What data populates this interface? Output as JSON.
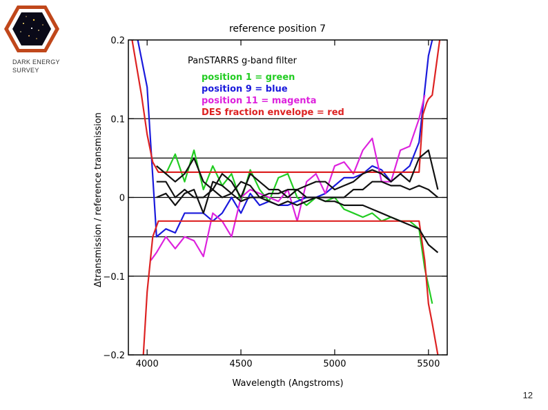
{
  "logo": {
    "line1": "DARK ENERGY",
    "line2": "SURVEY",
    "icon": "des-hexagon-icon"
  },
  "page_number": "12",
  "chart_data": {
    "type": "line",
    "title": "reference position 7",
    "xlabel": "Wavelength (Angstroms)",
    "ylabel": "Δtransmission / reference transmission",
    "xlim": [
      3900,
      5600
    ],
    "ylim": [
      -0.2,
      0.2
    ],
    "x_ticks": [
      4000,
      4500,
      5000,
      5500
    ],
    "y_ticks": [
      -0.2,
      -0.1,
      0,
      0.1,
      0.2
    ],
    "y_tick_labels": [
      "−0.2",
      "−0.1",
      "0",
      "0.1",
      "0.2"
    ],
    "hlines": [
      -0.1,
      -0.05,
      0,
      0.05,
      0.1
    ],
    "legend": {
      "placement": "top-center",
      "title": "PanSTARRS g-band filter",
      "entries": [
        {
          "label": "position 1 = green",
          "color": "#22cc22"
        },
        {
          "label": "position 9 = blue",
          "color": "#1a1adc"
        },
        {
          "label": "position 11 = magenta",
          "color": "#dd22dd"
        },
        {
          "label": "DES fraction envelope = red",
          "color": "#dd2222"
        }
      ]
    },
    "series": [
      {
        "name": "position 1",
        "color": "#22cc22",
        "x": [
          4050,
          4100,
          4150,
          4200,
          4250,
          4300,
          4350,
          4400,
          4450,
          4500,
          4550,
          4600,
          4650,
          4700,
          4750,
          4800,
          4850,
          4900,
          4950,
          5000,
          5050,
          5100,
          5150,
          5200,
          5250,
          5300,
          5350,
          5400,
          5450,
          5480,
          5520
        ],
        "y": [
          0.04,
          0.03,
          0.055,
          0.02,
          0.06,
          0.01,
          0.04,
          0.015,
          0.03,
          -0.005,
          0.035,
          0.01,
          -0.005,
          0.025,
          0.03,
          0.0,
          -0.01,
          0.0,
          -0.005,
          0.0,
          -0.015,
          -0.02,
          -0.025,
          -0.02,
          -0.03,
          -0.025,
          -0.03,
          -0.03,
          -0.04,
          -0.09,
          -0.135
        ]
      },
      {
        "name": "position 9",
        "color": "#1a1adc",
        "x": [
          3950,
          4000,
          4050,
          4100,
          4150,
          4200,
          4250,
          4300,
          4350,
          4400,
          4450,
          4500,
          4550,
          4600,
          4650,
          4700,
          4750,
          4800,
          4850,
          4900,
          4950,
          5000,
          5050,
          5100,
          5150,
          5200,
          5250,
          5300,
          5350,
          5400,
          5450,
          5500,
          5520
        ],
        "y": [
          0.2,
          0.14,
          -0.05,
          -0.04,
          -0.045,
          -0.02,
          -0.02,
          -0.02,
          -0.03,
          -0.02,
          0.0,
          -0.02,
          0.005,
          -0.01,
          -0.005,
          -0.01,
          -0.01,
          -0.005,
          0.0,
          0.0,
          0.005,
          0.015,
          0.025,
          0.025,
          0.03,
          0.04,
          0.035,
          0.02,
          0.03,
          0.04,
          0.07,
          0.18,
          0.2
        ]
      },
      {
        "name": "position 11",
        "color": "#dd22dd",
        "x": [
          4020,
          4050,
          4100,
          4150,
          4200,
          4250,
          4300,
          4350,
          4400,
          4450,
          4500,
          4550,
          4600,
          4650,
          4700,
          4750,
          4800,
          4850,
          4900,
          4950,
          5000,
          5050,
          5100,
          5150,
          5200,
          5250,
          5300,
          5350,
          5400,
          5450,
          5480
        ],
        "y": [
          -0.08,
          -0.07,
          -0.05,
          -0.065,
          -0.05,
          -0.055,
          -0.075,
          -0.02,
          -0.03,
          -0.05,
          0.0,
          0.01,
          0.005,
          0.0,
          -0.005,
          0.01,
          -0.03,
          0.02,
          0.03,
          0.005,
          0.04,
          0.045,
          0.03,
          0.06,
          0.075,
          0.02,
          0.02,
          0.06,
          0.065,
          0.1,
          0.13
        ]
      },
      {
        "name": "DES envelope upper",
        "color": "#dd2222",
        "x": [
          3920,
          3970,
          4000,
          4030,
          4060,
          5450,
          5470,
          5490,
          5500,
          5520,
          5560
        ],
        "y": [
          0.2,
          0.13,
          0.08,
          0.045,
          0.032,
          0.032,
          0.105,
          0.12,
          0.125,
          0.13,
          0.2
        ]
      },
      {
        "name": "DES envelope lower",
        "color": "#dd2222",
        "x": [
          3980,
          4000,
          4030,
          4060,
          5450,
          5480,
          5500,
          5520,
          5550
        ],
        "y": [
          -0.2,
          -0.12,
          -0.05,
          -0.03,
          -0.03,
          -0.08,
          -0.135,
          -0.16,
          -0.2
        ]
      },
      {
        "name": "other positions a",
        "color": "#111111",
        "x": [
          4050,
          4100,
          4150,
          4200,
          4250,
          4300,
          4350,
          4400,
          4450,
          4500,
          4550,
          4600,
          4650,
          4700,
          4750,
          4800,
          4850,
          4900,
          4950,
          5000,
          5050,
          5100,
          5150,
          5200,
          5250,
          5300,
          5350,
          5400,
          5450,
          5500,
          5550
        ],
        "y": [
          0.04,
          0.03,
          0.02,
          0.03,
          0.05,
          0.02,
          0.01,
          0.03,
          0.02,
          0.0,
          0.03,
          0.02,
          0.01,
          0.01,
          0.0,
          0.01,
          0.0,
          0.0,
          0.0,
          0.0,
          0.0,
          0.01,
          0.01,
          0.02,
          0.02,
          0.015,
          0.015,
          0.01,
          0.015,
          0.01,
          0.0
        ]
      },
      {
        "name": "other positions b",
        "color": "#111111",
        "x": [
          4050,
          4100,
          4150,
          4200,
          4250,
          4300,
          4350,
          4400,
          4450,
          4500,
          4550,
          4600,
          4650,
          4700,
          4750,
          4800,
          4850,
          4900,
          4950,
          5000,
          5050,
          5100,
          5150,
          5200,
          5250,
          5300,
          5350,
          5400,
          5450,
          5500,
          5550
        ],
        "y": [
          0.02,
          0.02,
          0.0,
          0.01,
          0.0,
          0.0,
          0.01,
          0.0,
          0.005,
          -0.005,
          0.0,
          0.0,
          -0.005,
          -0.01,
          -0.005,
          -0.01,
          -0.005,
          0.0,
          -0.005,
          -0.005,
          -0.01,
          -0.01,
          -0.01,
          -0.015,
          -0.02,
          -0.025,
          -0.03,
          -0.035,
          -0.04,
          -0.06,
          -0.07
        ]
      },
      {
        "name": "other positions c",
        "color": "#111111",
        "x": [
          4050,
          4100,
          4150,
          4200,
          4250,
          4300,
          4350,
          4400,
          4450,
          4500,
          4550,
          4600,
          4650,
          4700,
          4750,
          4800,
          4850,
          4900,
          4950,
          5000,
          5050,
          5100,
          5150,
          5200,
          5250,
          5300,
          5350,
          5400,
          5450,
          5500,
          5550
        ],
        "y": [
          0.0,
          0.005,
          -0.01,
          0.005,
          0.01,
          -0.02,
          0.02,
          0.015,
          0.005,
          0.02,
          0.015,
          0.0,
          0.005,
          0.005,
          0.01,
          0.01,
          0.015,
          0.02,
          0.02,
          0.01,
          0.015,
          0.02,
          0.03,
          0.035,
          0.03,
          0.02,
          0.03,
          0.02,
          0.05,
          0.06,
          0.01
        ]
      }
    ]
  }
}
